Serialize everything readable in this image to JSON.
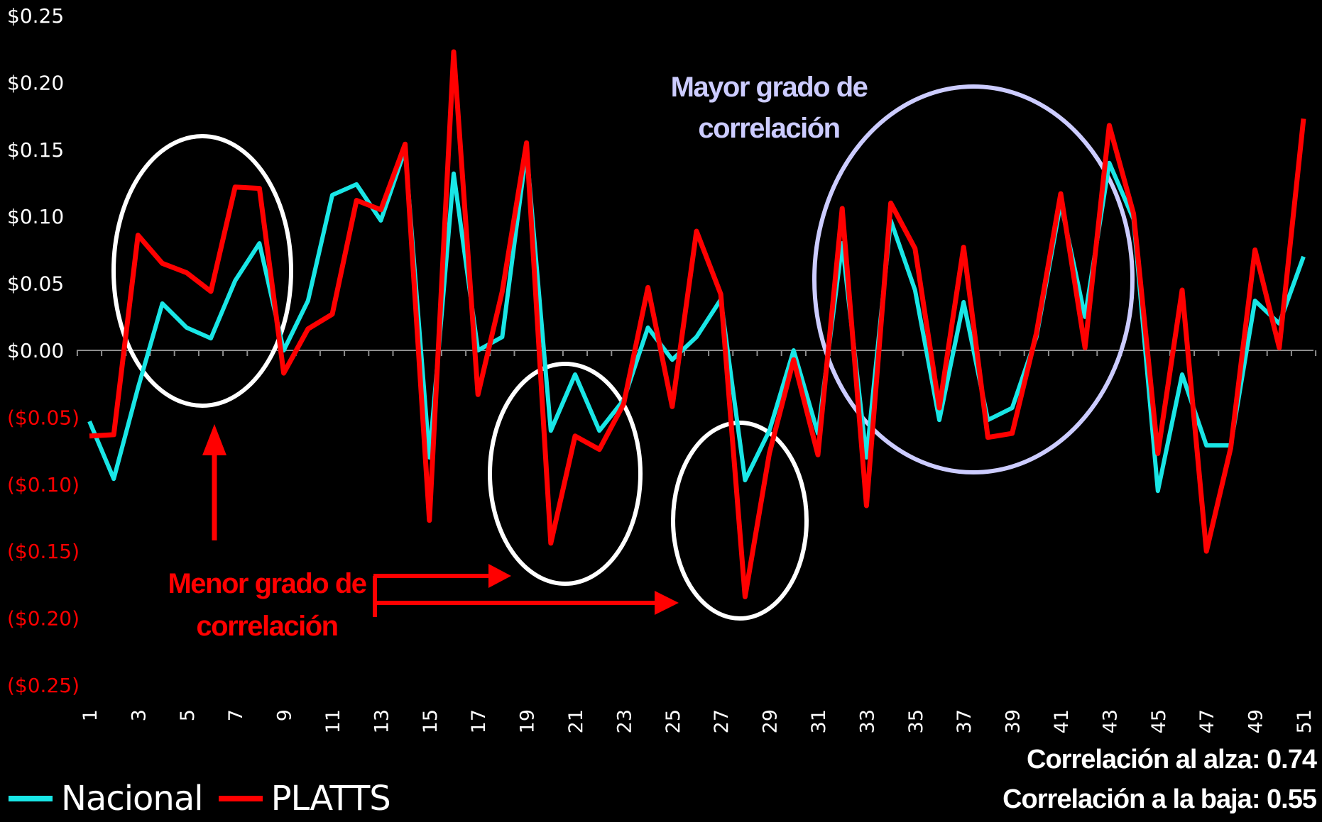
{
  "chart_data": {
    "type": "line",
    "x": [
      1,
      2,
      3,
      4,
      5,
      6,
      7,
      8,
      9,
      10,
      11,
      12,
      13,
      14,
      15,
      16,
      17,
      18,
      19,
      20,
      21,
      22,
      23,
      24,
      25,
      26,
      27,
      28,
      29,
      30,
      31,
      32,
      33,
      34,
      35,
      36,
      37,
      38,
      39,
      40,
      41,
      42,
      43,
      44,
      45,
      46,
      47,
      48,
      49,
      50,
      51
    ],
    "x_tick_labels": [
      "1",
      "3",
      "5",
      "7",
      "9",
      "11",
      "13",
      "15",
      "17",
      "19",
      "21",
      "23",
      "25",
      "27",
      "29",
      "31",
      "33",
      "35",
      "37",
      "39",
      "41",
      "43",
      "45",
      "47",
      "49",
      "51"
    ],
    "y_tick_labels": [
      "$0.25",
      "$0.20",
      "$0.15",
      "$0.10",
      "$0.05",
      "$0.00",
      "($0.05)",
      "($0.10)",
      "($0.15)",
      "($0.20)",
      "($0.25)"
    ],
    "ylim": [
      -0.25,
      0.25
    ],
    "series": [
      {
        "name": "Nacional",
        "color": "#19E6E6",
        "values": [
          -0.053,
          -0.096,
          -0.028,
          0.035,
          0.017,
          0.009,
          0.052,
          0.08,
          0.0,
          0.037,
          0.116,
          0.124,
          0.097,
          0.15,
          -0.08,
          0.132,
          0.0,
          0.01,
          0.15,
          -0.06,
          -0.018,
          -0.06,
          -0.037,
          0.017,
          -0.007,
          0.01,
          0.038,
          -0.097,
          -0.06,
          0.0,
          -0.062,
          0.08,
          -0.08,
          0.097,
          0.045,
          -0.052,
          0.036,
          -0.052,
          -0.043,
          0.01,
          0.11,
          0.025,
          0.14,
          0.098,
          -0.105,
          -0.018,
          -0.071,
          -0.071,
          0.037,
          0.02,
          0.07
        ]
      },
      {
        "name": "PLATTS",
        "color": "#FF0000",
        "values": [
          -0.064,
          -0.063,
          0.086,
          0.065,
          0.058,
          0.044,
          0.122,
          0.121,
          -0.017,
          0.016,
          0.027,
          0.112,
          0.105,
          0.154,
          -0.127,
          0.223,
          -0.033,
          0.044,
          0.155,
          -0.144,
          -0.064,
          -0.074,
          -0.04,
          0.047,
          -0.042,
          0.089,
          0.042,
          -0.184,
          -0.077,
          -0.007,
          -0.078,
          0.106,
          -0.116,
          0.11,
          0.076,
          -0.043,
          0.077,
          -0.065,
          -0.062,
          0.013,
          0.117,
          0.002,
          0.168,
          0.102,
          -0.077,
          0.045,
          -0.15,
          -0.073,
          0.075,
          0.002,
          0.173
        ]
      }
    ],
    "annotations": {
      "mayor_line1": "Mayor grado de",
      "mayor_line2": "correlación",
      "menor_line1": "Menor grado de",
      "menor_line2": "correlación"
    },
    "stats": {
      "alza": "Correlación al alza: 0.74",
      "baja": "Correlación a la baja: 0.55"
    },
    "colors": {
      "background": "#000000",
      "nacional": "#19E6E6",
      "platts": "#FF0000",
      "positive_tick": "#FFFFFF",
      "negative_tick": "#FF0000",
      "mayor_text": "#CCCCFF",
      "menor_text": "#FF0000"
    },
    "legend_position": "bottom-left",
    "grid": false
  }
}
